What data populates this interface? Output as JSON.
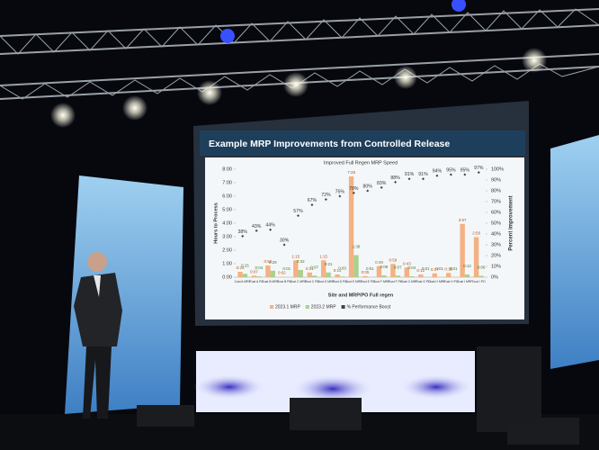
{
  "chart_data": {
    "type": "bar",
    "title": "Example MRP Improvements from Controlled Release",
    "subtitle": "Improved Full Regen MRP Speed",
    "x_label": "Site and MRP/PO Full regen",
    "y_label": "Hours to Process",
    "y2_label": "Percent improvement",
    "categories": [
      "Cust A MRP",
      "Cust A PO",
      "Cust B MRP",
      "Cust B PO",
      "Cust C MRP",
      "Cust C PO",
      "Cust D MRP",
      "Cust D PO",
      "Cust E MRP",
      "Cust E PO",
      "Cust F MRP",
      "Cust F PO",
      "Cust G MRP",
      "Cust G PO",
      "Cust H MRP",
      "Cust H PO",
      "Cust I MRP",
      "Cust I PO"
    ],
    "series": [
      {
        "name": "2023.1 MRP",
        "color": "#f4b183",
        "values": [
          0.4,
          0.117,
          0.867,
          0.033,
          1.25,
          0.35,
          1.25,
          0.2,
          7.467,
          0.083,
          0.817,
          0.983,
          0.717,
          0.2,
          0.283,
          0.317,
          3.95,
          2.967
        ],
        "value_labels": [
          "0:24",
          "0:07",
          "0:52",
          "0:02",
          "1:15",
          "0:21",
          "1:15",
          "0:12",
          "7:28",
          "0:05",
          "0:49",
          "0:59",
          "0:43",
          "0:12",
          "0:17",
          "0:19",
          "3:57",
          "2:58"
        ]
      },
      {
        "name": "2023.2 MRP",
        "color": "#a9d18e",
        "values": [
          0.25,
          0.067,
          0.483,
          0.017,
          0.533,
          0.117,
          0.35,
          0.05,
          1.633,
          0.017,
          0.133,
          0.117,
          0.067,
          0.017,
          0.017,
          0.017,
          0.2,
          0.1
        ],
        "value_labels": [
          "0:15",
          "0:04",
          "0:29",
          "0:01",
          "0:32",
          "0:07",
          "0:21",
          "0:03",
          "1:38",
          "0:01",
          "0:08",
          "0:07",
          "0:04",
          "0:01",
          "0:01",
          "0:01",
          "0:12",
          "0:06"
        ]
      },
      {
        "name": "% Performance Boost",
        "color": "#444444",
        "axis": "y2",
        "values": [
          38,
          43,
          44,
          30,
          57,
          67,
          72,
          75,
          78,
          80,
          83,
          88,
          91,
          91,
          94,
          95,
          95,
          97
        ],
        "value_labels": [
          "38%",
          "43%",
          "44%",
          "30%",
          "57%",
          "67%",
          "72%",
          "75%",
          "78%",
          "80%",
          "83%",
          "88%",
          "91%",
          "91%",
          "94%",
          "95%",
          "95%",
          "97%"
        ]
      }
    ],
    "ylim": [
      0,
      8
    ],
    "yticks": [
      {
        "value": 0,
        "label": "0:00"
      },
      {
        "value": 1,
        "label": "1:00"
      },
      {
        "value": 2,
        "label": "2:00"
      },
      {
        "value": 3,
        "label": "3:00"
      },
      {
        "value": 4,
        "label": "4:00"
      },
      {
        "value": 5,
        "label": "5:00"
      },
      {
        "value": 6,
        "label": "6:00"
      },
      {
        "value": 7,
        "label": "7:00"
      },
      {
        "value": 8,
        "label": "8:00"
      }
    ],
    "y2lim": [
      0,
      100
    ],
    "y2ticks": [
      {
        "value": 0,
        "label": "0%"
      },
      {
        "value": 10,
        "label": "10%"
      },
      {
        "value": 20,
        "label": "20%"
      },
      {
        "value": 30,
        "label": "30%"
      },
      {
        "value": 40,
        "label": "40%"
      },
      {
        "value": 50,
        "label": "50%"
      },
      {
        "value": 60,
        "label": "60%"
      },
      {
        "value": 70,
        "label": "70%"
      },
      {
        "value": 80,
        "label": "80%"
      },
      {
        "value": 90,
        "label": "90%"
      },
      {
        "value": 100,
        "label": "100%"
      }
    ],
    "legend": "bottom"
  }
}
